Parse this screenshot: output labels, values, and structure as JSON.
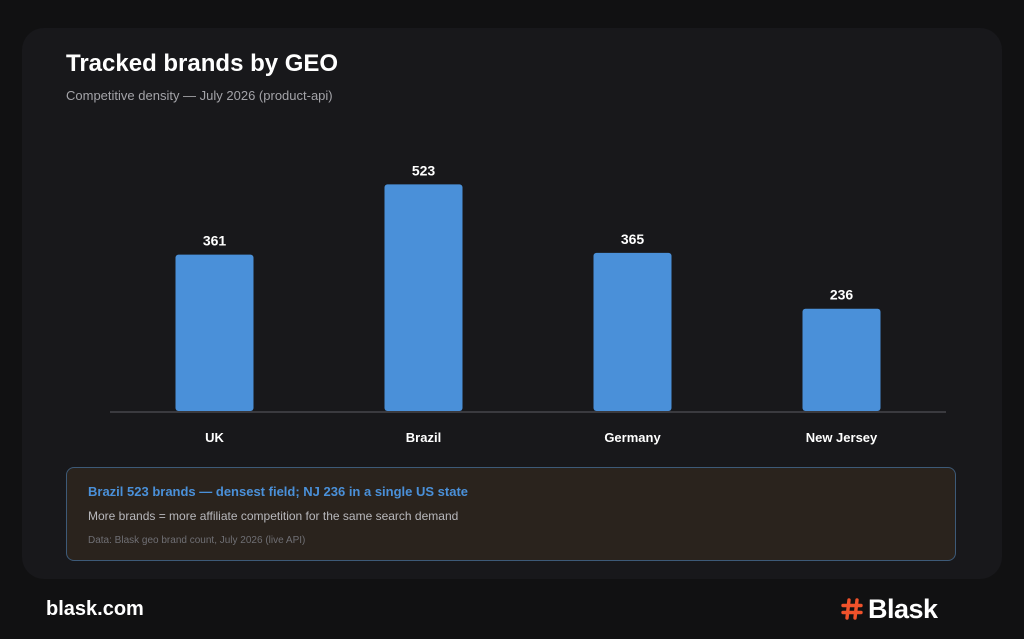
{
  "header": {
    "title": "Tracked brands by GEO",
    "subtitle": "Competitive density — July 2026 (product-api)"
  },
  "chart_data": {
    "type": "bar",
    "title": "Tracked brands by GEO",
    "subtitle": "Competitive density — July 2026 (product-api)",
    "categories": [
      "UK",
      "Brazil",
      "Germany",
      "New Jersey"
    ],
    "values": [
      361,
      523,
      365,
      236
    ],
    "value_labels": [
      "361",
      "523",
      "365",
      "236"
    ],
    "ylim": [
      0,
      600
    ],
    "grid": false,
    "bar_color": "#4a90d9",
    "xlabel": "",
    "ylabel": ""
  },
  "insight": {
    "headline": "Brazil 523 brands — densest field; NJ 236 in a single US state",
    "body": "More brands = more affiliate competition for the same search demand",
    "source": "Data: Blask geo brand count, July 2026 (live API)"
  },
  "footer": {
    "domain": "blask.com",
    "brand": "Blask",
    "brand_color": "#f0522b"
  }
}
